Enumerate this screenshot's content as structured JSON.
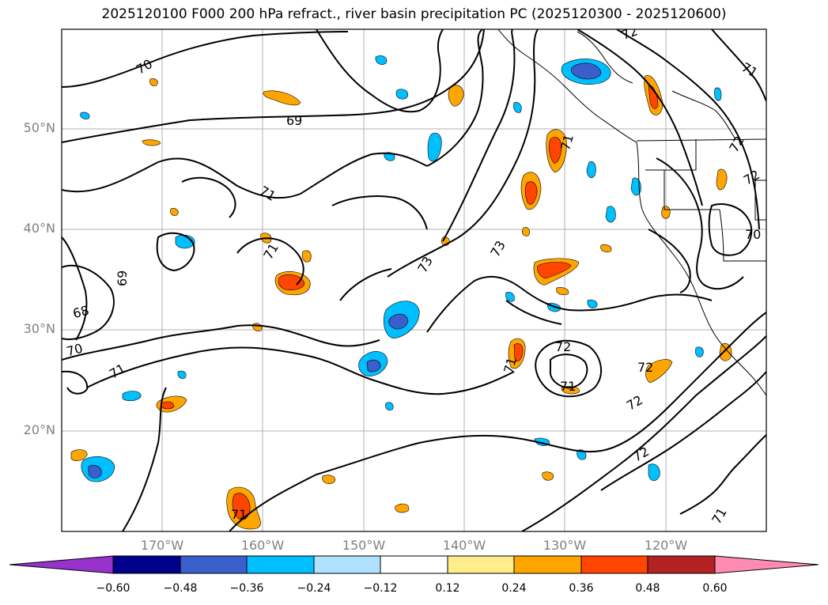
{
  "title": "2025120100 F000 200 hPa refract., river basin precipitation PC (2025120300 - 2025120600)",
  "map": {
    "lat_ticks": [
      "50°N",
      "40°N",
      "30°N",
      "20°N"
    ],
    "lon_ticks": [
      "170°W",
      "160°W",
      "150°W",
      "140°W",
      "130°W",
      "120°W"
    ],
    "contour_labels": [
      "70",
      "69",
      "71",
      "71",
      "73",
      "73",
      "69",
      "68",
      "70",
      "71",
      "72",
      "71",
      "72",
      "72",
      "72",
      "71",
      "71",
      "71",
      "72",
      "72",
      "70",
      "71",
      "72",
      "71"
    ],
    "colors": {
      "border": "#000000",
      "grid": "#b0b0b0",
      "tick_text": "#808080"
    }
  },
  "colorbar": {
    "ticks": [
      "−0.60",
      "−0.48",
      "−0.36",
      "−0.24",
      "−0.12",
      "0.12",
      "0.24",
      "0.36",
      "0.48",
      "0.60"
    ],
    "colors": [
      "#9932cc",
      "#00008b",
      "#3a5fcd",
      "#00bfff",
      "#b0e2ff",
      "#ffffff",
      "#ffec8b",
      "#ffa500",
      "#ff4500",
      "#b22222",
      "#ff8cb0"
    ]
  }
}
